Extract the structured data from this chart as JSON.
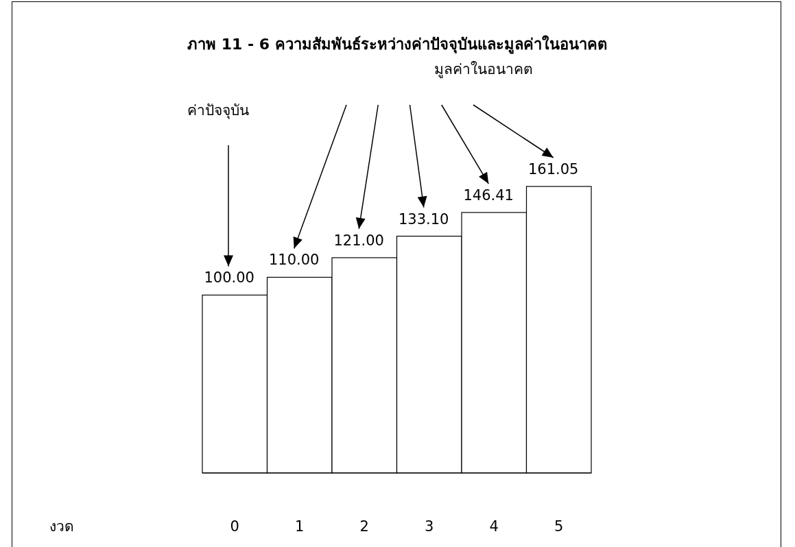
{
  "chart_data": {
    "type": "bar",
    "title": "ภาพ 11 - 6   ความสัมพันธ์ระหว่างค่าปัจจุบันและมูลค่าในอนาคต",
    "categories": [
      "0",
      "1",
      "2",
      "3",
      "4",
      "5"
    ],
    "values": [
      100.0,
      110.0,
      121.0,
      133.1,
      146.41,
      161.05
    ],
    "value_labels": [
      "100.00",
      "110.00",
      "121.00",
      "133.10",
      "146.41",
      "161.05"
    ],
    "color": "#ffffff",
    "annotations": [
      "ค่าปัจจุบัน",
      "มูลค่าในอนาคต",
      "งวด"
    ]
  }
}
